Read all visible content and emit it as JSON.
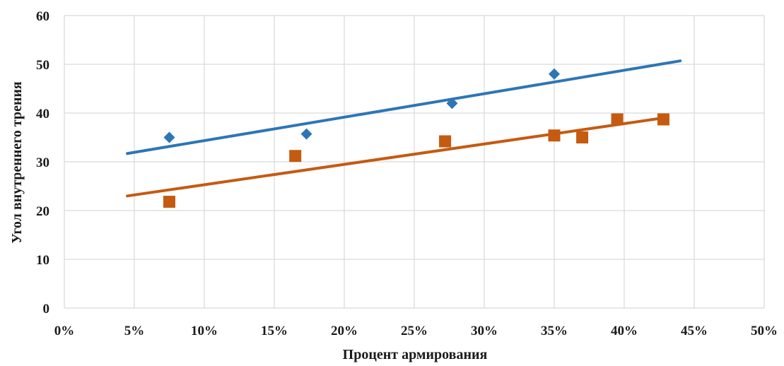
{
  "chart_data": {
    "type": "scatter",
    "title": "",
    "xlabel": "Процент армирования",
    "ylabel": "Угол внутреннего трения",
    "xlim": [
      0,
      0.5
    ],
    "ylim": [
      0,
      60
    ],
    "x_ticks": [
      0,
      0.05,
      0.1,
      0.15,
      0.2,
      0.25,
      0.3,
      0.35,
      0.4,
      0.45,
      0.5
    ],
    "x_tick_labels": [
      "0%",
      "5%",
      "10%",
      "15%",
      "20%",
      "25%",
      "30%",
      "35%",
      "40%",
      "45%",
      "50%"
    ],
    "y_ticks": [
      0,
      10,
      20,
      30,
      40,
      50,
      60
    ],
    "y_tick_labels": [
      "0",
      "10",
      "20",
      "30",
      "40",
      "50",
      "60"
    ],
    "grid": true,
    "legend": "none",
    "series": [
      {
        "marker": "diamond",
        "color": "#2e75b6",
        "points": [
          {
            "x": 0.075,
            "y": 35
          },
          {
            "x": 0.173,
            "y": 35.7
          },
          {
            "x": 0.277,
            "y": 42
          },
          {
            "x": 0.35,
            "y": 48
          }
        ],
        "trendline": {
          "x": [
            0.045,
            0.44
          ],
          "y": [
            31.7,
            50.7
          ]
        }
      },
      {
        "marker": "square",
        "color": "#c55a11",
        "points": [
          {
            "x": 0.075,
            "y": 21.8
          },
          {
            "x": 0.165,
            "y": 31.2
          },
          {
            "x": 0.272,
            "y": 34.2
          },
          {
            "x": 0.35,
            "y": 35.4
          },
          {
            "x": 0.37,
            "y": 35
          },
          {
            "x": 0.395,
            "y": 38.7
          },
          {
            "x": 0.428,
            "y": 38.7
          }
        ],
        "trendline": {
          "x": [
            0.045,
            0.428
          ],
          "y": [
            23.0,
            39.0
          ]
        }
      }
    ]
  }
}
